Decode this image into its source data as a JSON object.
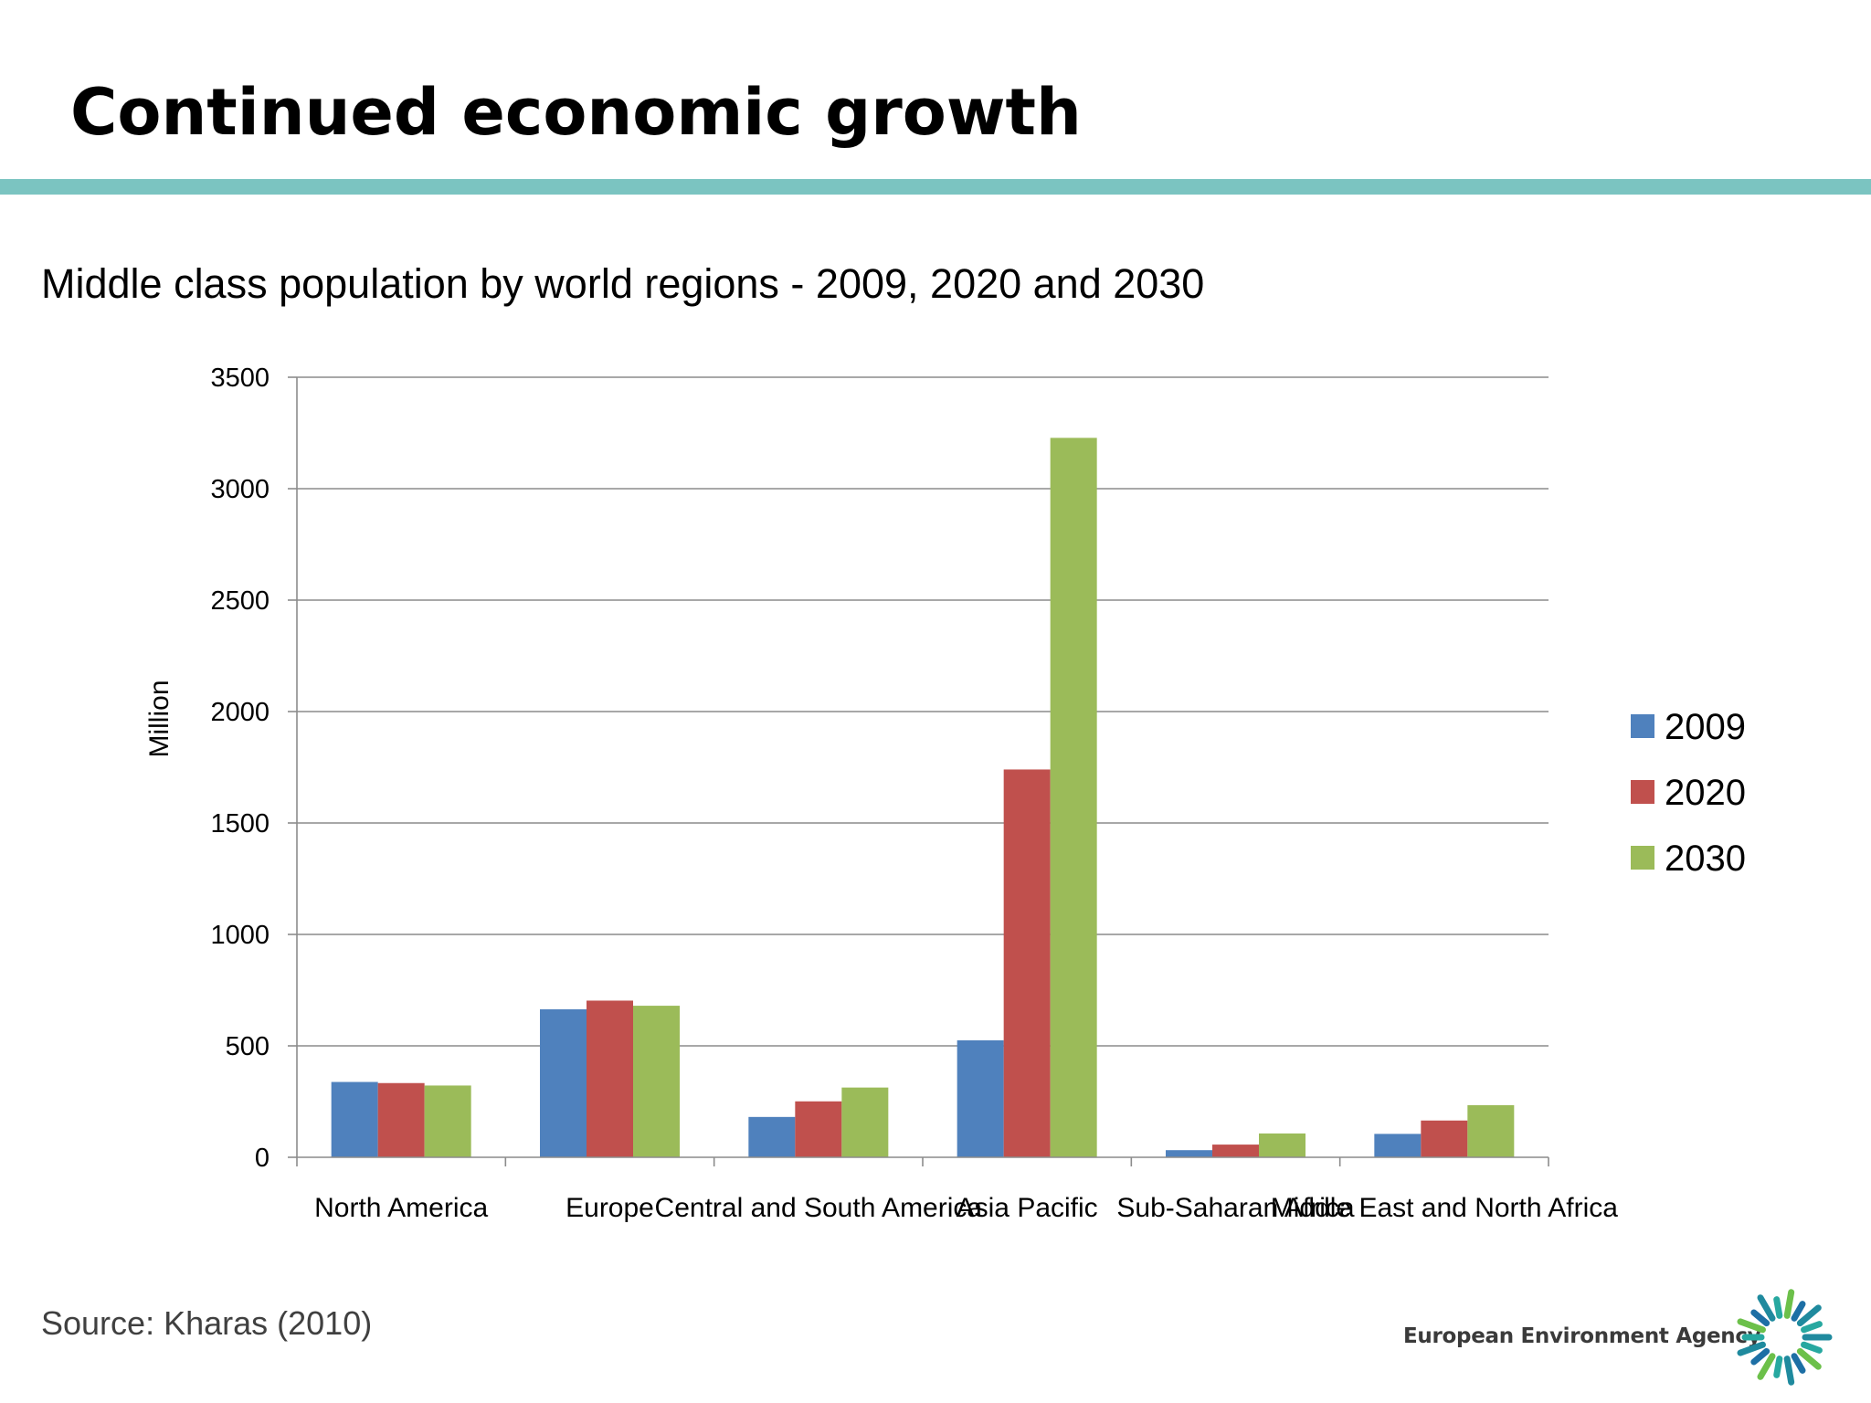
{
  "slide": {
    "title": "Continued economic growth",
    "subtitle": "Middle class population by world regions - 2009, 2020 and 2030",
    "source": "Source: Kharas (2010)",
    "accent_color": "#7bc4c1"
  },
  "logo": {
    "name": "European Environment Agency",
    "mark_icon": "eea-sun-icon",
    "colors": [
      "#1f8a9e",
      "#27a8a0",
      "#6cc04a",
      "#1d6fa5"
    ]
  },
  "chart_data": {
    "type": "bar",
    "title": "",
    "xlabel": "",
    "ylabel": "Million",
    "ylim": [
      0,
      3500
    ],
    "yticks": [
      0,
      500,
      1000,
      1500,
      2000,
      2500,
      3000,
      3500
    ],
    "grid": true,
    "legend": "right",
    "categories": [
      "North America",
      "Europe",
      "Central and South America",
      "Asia Pacific",
      "Sub-Saharan Africa",
      "Middle East and North Africa"
    ],
    "series": [
      {
        "name": "2009",
        "color": "#4f81bd",
        "values": [
          338,
          664,
          181,
          525,
          32,
          105
        ]
      },
      {
        "name": "2020",
        "color": "#c0504d",
        "values": [
          333,
          703,
          251,
          1740,
          57,
          165
        ]
      },
      {
        "name": "2030",
        "color": "#9bbb59",
        "values": [
          322,
          680,
          313,
          3228,
          107,
          234
        ]
      }
    ]
  }
}
